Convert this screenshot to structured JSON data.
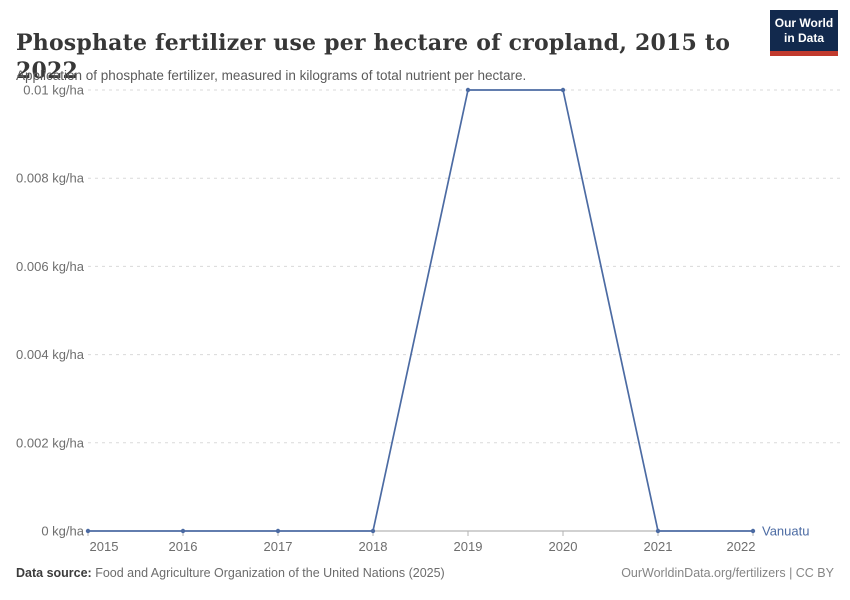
{
  "header": {
    "title": "Phosphate fertilizer use per hectare of cropland, 2015 to 2022",
    "subtitle": "Application of phosphate fertilizer, measured in kilograms of total nutrient per hectare.",
    "logo": {
      "line1": "Our World",
      "line2": "in Data",
      "bg_color": "#12294D",
      "accent_color": "#C13A2D"
    }
  },
  "chart_data": {
    "type": "line",
    "title": "Phosphate fertilizer use per hectare of cropland, 2015 to 2022",
    "subtitle": "Application of phosphate fertilizer, measured in kilograms of total nutrient per hectare.",
    "x": [
      2015,
      2016,
      2017,
      2018,
      2019,
      2020,
      2021,
      2022
    ],
    "series": [
      {
        "name": "Vanuatu",
        "values": [
          0,
          0,
          0,
          0,
          0.01,
          0.01,
          0,
          0
        ],
        "color": "#4C6BA3"
      }
    ],
    "yticks": [
      0,
      0.002,
      0.004,
      0.006,
      0.008,
      0.01
    ],
    "ytick_labels": [
      "0 kg/ha",
      "0.002 kg/ha",
      "0.004 kg/ha",
      "0.006 kg/ha",
      "0.008 kg/ha",
      "0.01 kg/ha"
    ],
    "ylim": [
      0,
      0.01
    ],
    "xlabel": "",
    "ylabel": "kg/ha",
    "grid": "horizontal-dashed",
    "legend_position": "right-of-line-end",
    "colors": {
      "gridline": "#dadada",
      "axis_line": "#a3a3a3",
      "tick_text": "#6e6e6e"
    }
  },
  "footer": {
    "source_label": "Data source:",
    "source_text": " Food and Agriculture Organization of the United Nations (2025)",
    "credit": "OurWorldinData.org/fertilizers | CC BY"
  }
}
